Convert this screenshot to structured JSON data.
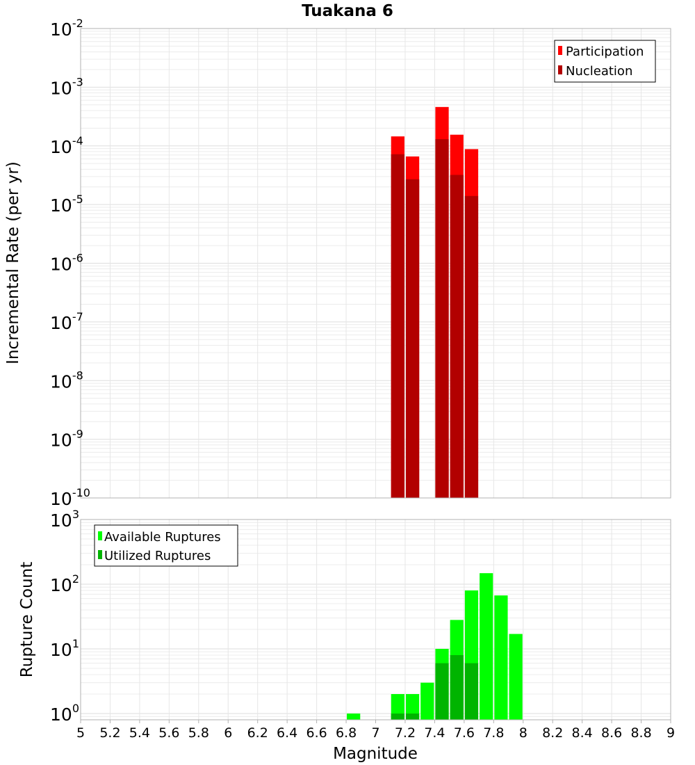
{
  "chart_data": [
    {
      "type": "bar",
      "title": "Tuakana 6",
      "xlabel": "",
      "ylabel": "Incremental Rate (per yr)",
      "yscale": "log",
      "xlim": [
        5,
        9
      ],
      "ylim": [
        1e-10,
        0.01
      ],
      "y_tick_exponents": [
        "-10",
        "-9",
        "-8",
        "-7",
        "-6",
        "-5",
        "-4",
        "-3",
        "-2"
      ],
      "y_tick_base": "10",
      "bin_width": 0.1,
      "legend_position": "top-right",
      "series": [
        {
          "name": "Participation",
          "color": "#ff0000",
          "x": [
            7.15,
            7.25,
            7.45,
            7.55,
            7.65
          ],
          "values": [
            0.000145,
            6.6e-05,
            0.00046,
            0.000155,
            8.8e-05
          ]
        },
        {
          "name": "Nucleation",
          "color": "#b20000",
          "x": [
            7.15,
            7.25,
            7.45,
            7.55,
            7.65
          ],
          "values": [
            7.2e-05,
            2.7e-05,
            0.00013,
            3.2e-05,
            1.4e-05
          ]
        }
      ]
    },
    {
      "type": "bar",
      "title": "",
      "xlabel": "Magnitude",
      "ylabel": "Rupture Count",
      "yscale": "log",
      "xlim": [
        5,
        9
      ],
      "ylim": [
        0.8,
        1000
      ],
      "y_tick_exponents": [
        "0",
        "1",
        "2",
        "3"
      ],
      "y_tick_base": "10",
      "x_ticks": [
        "5",
        "5.2",
        "5.4",
        "5.6",
        "5.8",
        "6",
        "6.2",
        "6.4",
        "6.6",
        "6.8",
        "7",
        "7.2",
        "7.4",
        "7.6",
        "7.8",
        "8",
        "8.2",
        "8.4",
        "8.6",
        "8.8",
        "9"
      ],
      "bin_width": 0.1,
      "legend_position": "top-left",
      "series": [
        {
          "name": "Available Ruptures",
          "color": "#00ff00",
          "x": [
            6.85,
            7.15,
            7.25,
            7.35,
            7.45,
            7.55,
            7.65,
            7.75,
            7.85,
            7.95
          ],
          "values": [
            1,
            2,
            2,
            3,
            10,
            28,
            80,
            148,
            67,
            17
          ]
        },
        {
          "name": "Utilized Ruptures",
          "color": "#00b400",
          "x": [
            7.15,
            7.25,
            7.45,
            7.55,
            7.65
          ],
          "values": [
            1,
            1,
            6,
            8,
            6
          ]
        }
      ]
    }
  ]
}
